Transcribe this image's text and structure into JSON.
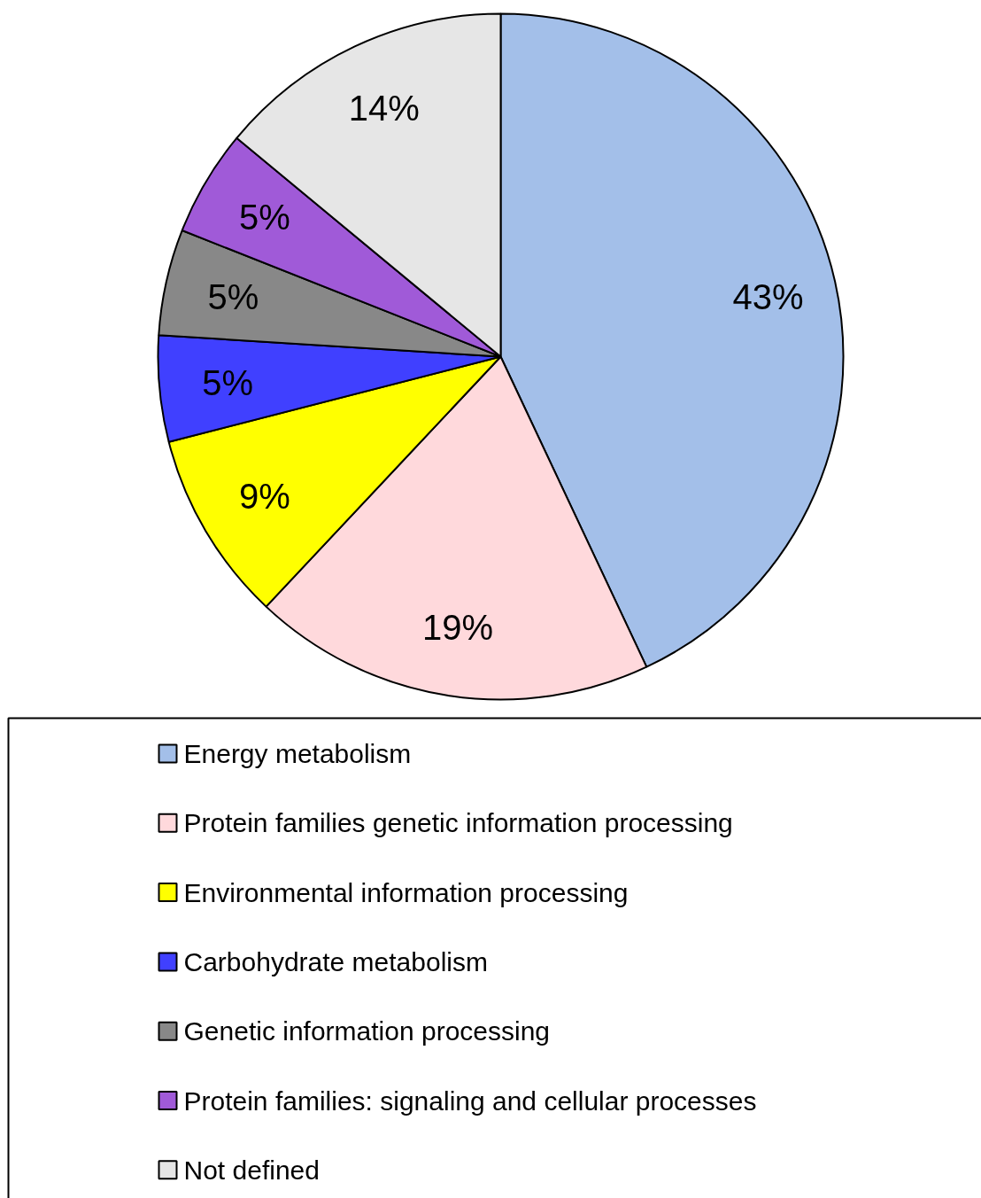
{
  "chart_data": {
    "type": "pie",
    "categories": [
      "Energy metabolism",
      "Protein families genetic information processing",
      "Environmental information processing",
      "Carbohydrate metabolism",
      "Genetic information processing",
      "Protein families: signaling and cellular processes",
      "Not defined"
    ],
    "values": [
      43,
      19,
      9,
      5,
      5,
      5,
      14
    ],
    "value_labels": [
      "43%",
      "19%",
      "9%",
      "5%",
      "5%",
      "5%",
      "14%"
    ],
    "colors": [
      "#a3bfe9",
      "#ffd9dc",
      "#ffff00",
      "#4040ff",
      "#888888",
      "#a05ad8",
      "#e6e6e6"
    ],
    "legend": "bottom"
  }
}
